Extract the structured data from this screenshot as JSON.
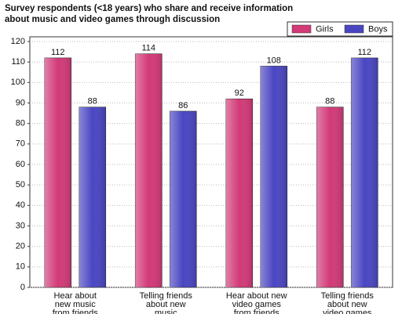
{
  "chart_data": {
    "type": "bar",
    "title": "Survey respondents (<18 years) who share and receive information about music and video games through discussion",
    "categories": [
      [
        "Hear about",
        "new music",
        "from friends"
      ],
      [
        "Telling friends",
        "about new",
        "music"
      ],
      [
        "Hear about new",
        "video games",
        "from friends"
      ],
      [
        "Telling friends",
        "about new",
        "video games"
      ]
    ],
    "series": [
      {
        "name": "Girls",
        "color": "#d23a78",
        "values": [
          112,
          114,
          92,
          88
        ]
      },
      {
        "name": "Boys",
        "color": "#4a46c2",
        "values": [
          88,
          86,
          108,
          112
        ]
      }
    ],
    "ylim": [
      0,
      120
    ],
    "yticks": [
      0,
      10,
      20,
      30,
      40,
      50,
      60,
      70,
      80,
      90,
      100,
      110,
      120
    ],
    "grid": true,
    "legend": "top-right"
  }
}
